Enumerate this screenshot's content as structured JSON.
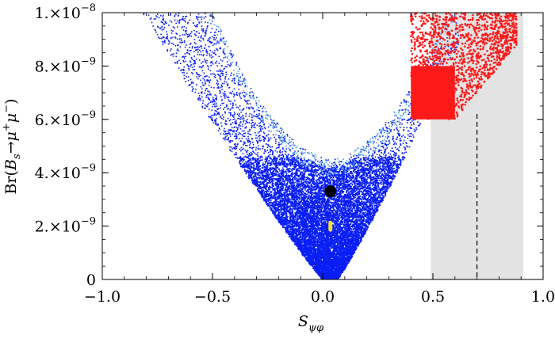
{
  "chart_data": {
    "type": "scatter",
    "title": "",
    "xlabel": "S_ψφ",
    "ylabel": "Br(B_s→μ⁺μ⁻)",
    "xlim": [
      -1.0,
      1.0
    ],
    "ylim": [
      0,
      1e-08
    ],
    "x_ticks": [
      -1.0,
      -0.5,
      0.0,
      0.5,
      1.0
    ],
    "x_tick_labels": [
      "−1.0",
      "−0.5",
      "0.0",
      "0.5",
      "1.0"
    ],
    "y_ticks": [
      0,
      2e-09,
      4e-09,
      6e-09,
      8e-09,
      1e-08
    ],
    "y_tick_labels": [
      {
        "mant": "0",
        "exp": ""
      },
      {
        "mant": "2.×10",
        "exp": "−9"
      },
      {
        "mant": "4.×10",
        "exp": "−9"
      },
      {
        "mant": "6.×10",
        "exp": "−9"
      },
      {
        "mant": "8.×10",
        "exp": "−9"
      },
      {
        "mant": "1.×10",
        "exp": "−8"
      }
    ],
    "grid": false,
    "shaded_region": {
      "x": [
        0.49,
        0.91
      ],
      "color": "#e3e3e3"
    },
    "dashed_line": {
      "x": 0.7,
      "color": "#000000"
    },
    "scatter_regions": [
      {
        "color": "#0a1ff5",
        "shape": "v-band",
        "description_points": [
          {
            "x": -0.8,
            "y": 1e-08
          },
          {
            "x": 0.0,
            "y": 5e-11
          },
          {
            "x": 0.6,
            "y": 6.5e-09
          }
        ]
      },
      {
        "color": "#4a9ef0",
        "shape": "v-inner-edge",
        "description_points": [
          {
            "x": -0.5,
            "y": 1e-08
          },
          {
            "x": 0.03,
            "y": 4.3e-09
          },
          {
            "x": 0.3,
            "y": 6e-09
          }
        ]
      },
      {
        "color": "#ff1a1a",
        "shape": "upper-right-block",
        "x_range": [
          0.4,
          0.9
        ],
        "y_range": [
          6e-09,
          1e-08
        ]
      }
    ],
    "markers": [
      {
        "name": "black-point",
        "x": 0.035,
        "y": 3.3e-09,
        "color": "#000000",
        "shape": "circle"
      },
      {
        "name": "yellow-bar",
        "x": 0.035,
        "y_low": 1.8e-09,
        "y_high": 2.2e-09,
        "color": "#f0e030",
        "shape": "bar"
      }
    ]
  }
}
